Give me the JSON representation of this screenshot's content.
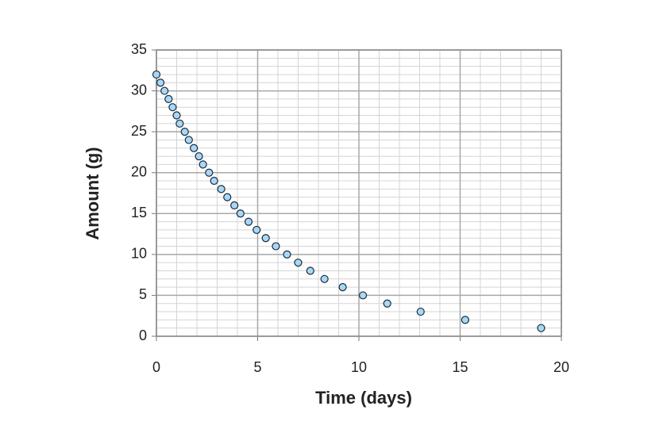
{
  "chart_data": {
    "type": "scatter",
    "xlabel": "Time (days)",
    "ylabel": "Amount (g)",
    "series": [
      {
        "color": "#a8d8f5",
        "x": [
          0,
          0.2,
          0.4,
          0.6,
          0.8,
          1.0,
          1.15,
          1.4,
          1.6,
          1.85,
          2.1,
          2.3,
          2.6,
          2.85,
          3.2,
          3.5,
          3.85,
          4.15,
          4.55,
          4.95,
          5.4,
          5.9,
          6.45,
          7.0,
          7.6,
          8.3,
          9.2,
          10.2,
          11.4,
          13.05,
          15.25,
          19.0
        ],
        "values": [
          32,
          31,
          30,
          29,
          28,
          27,
          26,
          25,
          24,
          23,
          22,
          21,
          20,
          19,
          18,
          17,
          16,
          15,
          14,
          13,
          12,
          11,
          10,
          9,
          8,
          7,
          6,
          5,
          4,
          3,
          2,
          1
        ]
      }
    ],
    "xlim": [
      0,
      20
    ],
    "xticks": [
      0,
      5,
      10,
      15,
      20
    ],
    "ylim": [
      0,
      35
    ],
    "yticks": [
      0,
      5,
      10,
      15,
      20,
      25,
      30,
      35
    ],
    "grid": true,
    "xminor": 1,
    "yminor": 1
  }
}
